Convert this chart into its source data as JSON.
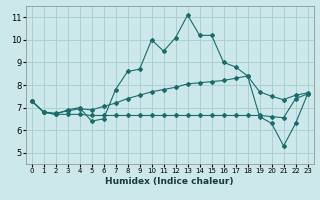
{
  "xlabel": "Humidex (Indice chaleur)",
  "ylabel": "",
  "background_color": "#cce8ea",
  "grid_color": "#aacfd2",
  "line_color": "#1a6b6b",
  "xlim": [
    -0.5,
    23.5
  ],
  "ylim": [
    4.5,
    11.5
  ],
  "x_ticks": [
    0,
    1,
    2,
    3,
    4,
    5,
    6,
    7,
    8,
    9,
    10,
    11,
    12,
    13,
    14,
    15,
    16,
    17,
    18,
    19,
    20,
    21,
    22,
    23
  ],
  "y_ticks": [
    5,
    6,
    7,
    8,
    9,
    10,
    11
  ],
  "line1_x": [
    0,
    1,
    2,
    3,
    4,
    5,
    6,
    7,
    8,
    9,
    10,
    11,
    12,
    13,
    14,
    15,
    16,
    17,
    18,
    19,
    20,
    21,
    22,
    23
  ],
  "line1_y": [
    7.3,
    6.8,
    6.7,
    6.9,
    7.0,
    6.4,
    6.5,
    7.8,
    8.6,
    8.7,
    10.0,
    9.5,
    10.1,
    11.1,
    10.2,
    10.2,
    9.0,
    8.8,
    8.4,
    6.6,
    6.3,
    5.3,
    6.3,
    7.6
  ],
  "line2_x": [
    0,
    1,
    2,
    3,
    4,
    5,
    6,
    7,
    8,
    9,
    10,
    11,
    12,
    13,
    14,
    15,
    16,
    17,
    18,
    19,
    20,
    21,
    22,
    23
  ],
  "line2_y": [
    7.3,
    6.8,
    6.75,
    6.85,
    6.95,
    6.9,
    7.05,
    7.2,
    7.4,
    7.55,
    7.7,
    7.8,
    7.9,
    8.05,
    8.1,
    8.15,
    8.2,
    8.3,
    8.4,
    7.7,
    7.5,
    7.35,
    7.55,
    7.65
  ],
  "line3_x": [
    0,
    1,
    2,
    3,
    4,
    5,
    6,
    7,
    8,
    9,
    10,
    11,
    12,
    13,
    14,
    15,
    16,
    17,
    18,
    19,
    20,
    21,
    22,
    23
  ],
  "line3_y": [
    7.3,
    6.8,
    6.7,
    6.7,
    6.7,
    6.65,
    6.65,
    6.65,
    6.65,
    6.65,
    6.65,
    6.65,
    6.65,
    6.65,
    6.65,
    6.65,
    6.65,
    6.65,
    6.65,
    6.65,
    6.6,
    6.55,
    7.4,
    7.6
  ]
}
